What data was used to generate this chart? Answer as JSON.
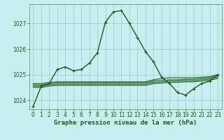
{
  "title": "Graphe pression niveau de la mer (hPa)",
  "background_color": "#c8eef0",
  "grid_color": "#99cccc",
  "line_color": "#1a5c1a",
  "spine_color": "#558855",
  "xlim": [
    -0.5,
    23.5
  ],
  "ylim": [
    1023.65,
    1027.75
  ],
  "yticks": [
    1024,
    1025,
    1026,
    1027
  ],
  "xticks": [
    0,
    1,
    2,
    3,
    4,
    5,
    6,
    7,
    8,
    9,
    10,
    11,
    12,
    13,
    14,
    15,
    16,
    17,
    18,
    19,
    20,
    21,
    22,
    23
  ],
  "series": [
    [
      1023.75,
      1024.55,
      1024.65,
      1025.2,
      1025.3,
      1025.15,
      1025.2,
      1025.45,
      1025.85,
      1027.05,
      1027.45,
      1027.5,
      1027.0,
      1026.45,
      1025.9,
      1025.5,
      1024.9,
      1024.65,
      1024.3,
      1024.2,
      1024.45,
      1024.65,
      1024.75,
      1025.0
    ],
    [
      1024.65,
      1024.65,
      1024.7,
      1024.72,
      1024.72,
      1024.72,
      1024.72,
      1024.72,
      1024.72,
      1024.72,
      1024.72,
      1024.72,
      1024.72,
      1024.72,
      1024.72,
      1024.8,
      1024.85,
      1024.88,
      1024.88,
      1024.88,
      1024.88,
      1024.9,
      1024.92,
      1025.0
    ],
    [
      1024.6,
      1024.6,
      1024.65,
      1024.68,
      1024.68,
      1024.68,
      1024.68,
      1024.68,
      1024.68,
      1024.68,
      1024.68,
      1024.68,
      1024.68,
      1024.68,
      1024.68,
      1024.75,
      1024.78,
      1024.8,
      1024.8,
      1024.82,
      1024.82,
      1024.85,
      1024.88,
      1024.95
    ],
    [
      1024.55,
      1024.55,
      1024.6,
      1024.63,
      1024.63,
      1024.63,
      1024.63,
      1024.63,
      1024.63,
      1024.63,
      1024.63,
      1024.63,
      1024.63,
      1024.63,
      1024.63,
      1024.7,
      1024.72,
      1024.75,
      1024.75,
      1024.77,
      1024.77,
      1024.8,
      1024.83,
      1024.9
    ],
    [
      1024.5,
      1024.5,
      1024.55,
      1024.58,
      1024.58,
      1024.58,
      1024.58,
      1024.58,
      1024.58,
      1024.58,
      1024.58,
      1024.58,
      1024.58,
      1024.58,
      1024.58,
      1024.65,
      1024.67,
      1024.7,
      1024.7,
      1024.72,
      1024.72,
      1024.75,
      1024.78,
      1024.85
    ]
  ],
  "marker": "+",
  "markersize": 3.5,
  "linewidth_main": 1.0,
  "linewidth_flat": 0.8,
  "tick_fontsize": 5.5,
  "xlabel_fontsize": 6.5
}
